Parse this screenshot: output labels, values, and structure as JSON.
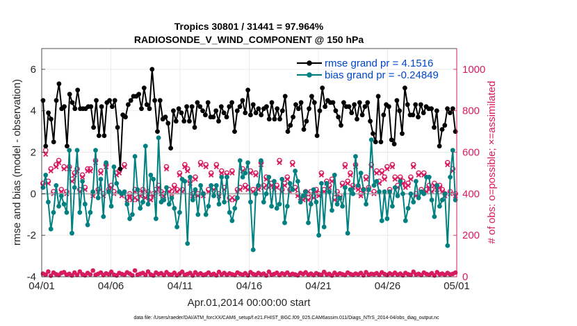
{
  "chart_data": {
    "type": "line",
    "title_line1": "Tropics 30801 / 31441 = 97.964%",
    "title_line2": "RADIOSONDE_V_WIND_COMPONENT @ 150 hPa",
    "xlabel": "Apr.01,2014 00:00:00 start",
    "ylabel_left": "rmse and bias (model - observation)",
    "ylabel_right": "# of obs: o=possible; ×=assimilated",
    "footer": "data file: /Users/raeder/DAI/ATM_forcXX/CAM6_setup/f.e21.FHIST_BGC.f09_025.CAM6assim.011/Diags_NTrS_2014-04/obs_diag_output.nc",
    "x_range": [
      0,
      30
    ],
    "x_ticks": [
      0,
      5,
      10,
      15,
      20,
      25,
      30
    ],
    "x_tick_labels": [
      "04/01",
      "04/06",
      "04/11",
      "04/16",
      "04/21",
      "04/26",
      "05/01"
    ],
    "y_left_range": [
      -4,
      7
    ],
    "y_left_ticks": [
      -4,
      -2,
      0,
      2,
      4,
      6
    ],
    "y_left_tick_labels": [
      "-4",
      "-2",
      "0",
      "2",
      "4",
      "6"
    ],
    "y_right_range": [
      0,
      1100
    ],
    "y_right_ticks": [
      0,
      200,
      400,
      600,
      800,
      1000
    ],
    "y_right_tick_labels": [
      "0",
      "200",
      "400",
      "600",
      "800",
      "1000"
    ],
    "legend": [
      {
        "label": "rmse grand pr = 4.1516",
        "color": "#000000"
      },
      {
        "label": "bias grand pr = -0.24849",
        "color": "#008080"
      }
    ],
    "colors": {
      "rmse": "#000000",
      "bias": "#008080",
      "obs": "#d81b60",
      "zero_line": "#b0b0b0",
      "legend_text": "#0046c8"
    },
    "series": [
      {
        "name": "rmse",
        "axis": "left",
        "values": [
          4.5,
          2.3,
          3.9,
          3.6,
          2.5,
          4.5,
          5.3,
          4.1,
          4.2,
          2.3,
          4.8,
          4.4,
          4.1,
          5.0,
          4.1,
          4.1,
          4.1,
          4.2,
          4.2,
          3.2,
          4.5,
          2.8,
          4.2,
          2.8,
          4.4,
          4.5,
          4.2,
          4.5,
          3.2,
          1.2,
          3.8,
          3.7,
          4.3,
          4.5,
          4.7,
          4.7,
          4.8,
          4.1,
          5.1,
          4.3,
          4.1,
          6.0,
          4.5,
          3.0,
          4.5,
          3.6,
          3.7,
          3.4,
          2.2,
          4.0,
          3.5,
          4.1,
          3.9,
          3.5,
          4.2,
          3.5,
          4.2,
          3.2,
          4.4,
          4.2,
          4.0,
          3.8,
          4.4,
          3.7,
          3.7,
          4.0,
          3.5,
          4.2,
          3.9,
          3.7,
          4.2,
          4.4,
          3.0,
          4.0,
          4.2,
          4.5,
          3.9,
          5.0,
          3.8,
          4.3,
          3.9,
          4.1,
          3.8,
          4.1,
          4.2,
          3.6,
          4.4,
          3.6,
          4.1,
          3.6,
          4.0,
          4.7,
          3.0,
          3.3,
          3.7,
          4.3,
          4.1,
          4.4,
          3.1,
          3.5,
          4.1,
          4.7,
          4.4,
          2.8,
          4.0,
          5.1,
          4.2,
          4.5,
          4.4,
          4.4,
          4.0,
          3.7,
          3.3,
          4.4,
          4.2,
          4.2,
          3.9,
          4.3,
          3.6,
          4.4,
          3.8,
          4.2,
          4.4,
          3.5,
          2.9,
          2.5,
          4.7,
          2.5,
          3.8,
          4.3,
          4.2,
          2.6,
          2.4,
          4.5,
          4.0,
          2.9,
          5.1,
          4.3,
          3.8,
          3.8,
          4.3,
          3.7,
          4.3,
          3.9,
          4.2,
          4.1,
          4.1,
          3.2,
          4.0,
          2.3,
          3.1,
          3.3,
          4.1,
          3.9,
          4.1,
          3.0
        ]
      },
      {
        "name": "bias",
        "axis": "left",
        "values": [
          0.3,
          0.9,
          -0.4,
          -1.7,
          -0.9,
          0.4,
          -0.6,
          -0.1,
          -0.5,
          -0.9,
          2.1,
          -1.9,
          0.3,
          2.1,
          -0.9,
          0.6,
          -0.5,
          -1.5,
          -0.9,
          0.1,
          2.1,
          -0.2,
          0.7,
          -1.1,
          1.5,
          0.1,
          -0.6,
          1.3,
          0.5,
          0.1,
          0.0,
          0.1,
          -0.5,
          -1.2,
          -1.0,
          1.8,
          0.2,
          -0.7,
          -0.4,
          2.3,
          -0.5,
          0.9,
          0.7,
          -1.2,
          2.7,
          -0.4,
          -0.3,
          0.3,
          -0.5,
          -0.2,
          -0.7,
          -1.6,
          -0.9,
          0.7,
          0.6,
          -2.4,
          0.8,
          -0.3,
          0.2,
          -1.0,
          0.4,
          0.0,
          -1.0,
          -0.6,
          0.4,
          -0.1,
          0.4,
          -0.5,
          0.8,
          -0.4,
          0.8,
          -0.9,
          -1.3,
          -0.7,
          -0.2,
          1.6,
          0.8,
          1.0,
          1.5,
          -0.4,
          -2.7,
          0.0,
          0.4,
          1.6,
          -0.4,
          0.0,
          0.8,
          -0.6,
          0.6,
          -0.7,
          -0.5,
          0.7,
          -1.4,
          -0.6,
          0.5,
          0.2,
          1.1,
          0.6,
          -0.4,
          -0.1,
          0.1,
          -1.4,
          -0.5,
          0.2,
          -0.4,
          -2.0,
          0.5,
          -1.6,
          0.5,
          0.1,
          -0.8,
          0.9,
          -0.5,
          -0.2,
          -0.6,
          0.3,
          -1.9,
          0.2,
          0.0,
          1.8,
          0.4,
          1.0,
          0.2,
          -0.5,
          0.2,
          2.6,
          0.4,
          0.6,
          0.1,
          -1.3,
          0.1,
          -1.2,
          0.1,
          -0.6,
          0.3,
          -0.1,
          0.6,
          0.0,
          -1.3,
          -0.7,
          0.0,
          -0.4,
          0.6,
          -0.2,
          0.1,
          0.0,
          0.8,
          0.8,
          -0.3,
          -1.1,
          0.4,
          -0.6,
          -0.3,
          0.0,
          -2.5,
          0.8,
          2.1,
          -0.3
        ]
      },
      {
        "name": "obs possible",
        "axis": "right",
        "marker": "o",
        "values": [
          450,
          610,
          460,
          520,
          410,
          540,
          560,
          420,
          530,
          410,
          530,
          470,
          500,
          520,
          420,
          490,
          430,
          520,
          520,
          400,
          560,
          420,
          510,
          400,
          540,
          420,
          440,
          410,
          500,
          510,
          400,
          540,
          380,
          400,
          380,
          420,
          380,
          400,
          420,
          390,
          410,
          380,
          400,
          420,
          440,
          410,
          400,
          530,
          420,
          410,
          440,
          420,
          500,
          420,
          540,
          520,
          460,
          400,
          480,
          400,
          550,
          400,
          540,
          420,
          500,
          430,
          540,
          400,
          510,
          430,
          500,
          380,
          510,
          380,
          420,
          430,
          520,
          440,
          430,
          510,
          420,
          500,
          430,
          550,
          440,
          480,
          440,
          450,
          430,
          440,
          560,
          420,
          450,
          480,
          420,
          550,
          430,
          400,
          390,
          380,
          410,
          380,
          410,
          390,
          420,
          400,
          500,
          420,
          460,
          440,
          470,
          380,
          410,
          390,
          450,
          540,
          460,
          500,
          440,
          540,
          430,
          400,
          420,
          480,
          430,
          540,
          410,
          510,
          460,
          510,
          480,
          530,
          420,
          540,
          480,
          440,
          480,
          460,
          440,
          450,
          480,
          540,
          400,
          500,
          420,
          500,
          420,
          440,
          420,
          450,
          430,
          440,
          420,
          400,
          550,
          410,
          520,
          400
        ]
      },
      {
        "name": "obs assimilated",
        "axis": "right",
        "marker": "x",
        "values": [
          440,
          590,
          450,
          510,
          400,
          530,
          550,
          410,
          520,
          400,
          520,
          460,
          490,
          510,
          410,
          480,
          420,
          510,
          510,
          390,
          550,
          410,
          500,
          390,
          530,
          410,
          430,
          400,
          490,
          500,
          390,
          530,
          370,
          390,
          370,
          410,
          370,
          390,
          410,
          380,
          400,
          370,
          390,
          410,
          430,
          400,
          390,
          520,
          410,
          400,
          430,
          410,
          490,
          410,
          530,
          510,
          450,
          390,
          470,
          390,
          540,
          390,
          530,
          410,
          490,
          420,
          530,
          390,
          500,
          420,
          490,
          370,
          500,
          370,
          410,
          420,
          510,
          430,
          420,
          500,
          410,
          490,
          420,
          540,
          430,
          470,
          430,
          440,
          420,
          430,
          550,
          410,
          440,
          470,
          410,
          540,
          420,
          390,
          380,
          370,
          400,
          370,
          400,
          380,
          410,
          390,
          490,
          410,
          450,
          430,
          460,
          370,
          400,
          380,
          440,
          530,
          450,
          490,
          430,
          530,
          420,
          390,
          410,
          470,
          420,
          530,
          400,
          500,
          450,
          500,
          470,
          520,
          410,
          530,
          470,
          430,
          470,
          450,
          430,
          440,
          470,
          530,
          390,
          490,
          410,
          490,
          410,
          430,
          410,
          440,
          420,
          430,
          410,
          390,
          540,
          400,
          510,
          390
        ]
      },
      {
        "name": "obs rejected",
        "axis": "right",
        "marker": "*",
        "values": [
          15,
          10,
          25,
          5,
          20,
          12,
          8,
          18,
          22,
          10,
          14,
          6,
          20,
          9,
          25,
          12,
          7,
          18,
          11,
          30,
          9,
          14,
          20,
          8,
          16,
          12,
          24,
          10,
          6,
          18,
          13,
          9,
          21,
          15,
          7,
          30,
          10,
          14,
          18,
          9,
          25,
          11,
          6,
          20,
          13,
          17,
          8,
          22,
          12,
          10,
          19,
          7,
          15,
          24,
          9,
          13,
          18,
          6,
          21,
          11,
          16,
          8,
          12,
          20,
          10,
          14,
          7,
          23,
          11,
          18,
          9,
          16,
          12,
          8,
          20,
          14,
          10,
          17,
          7,
          22,
          13,
          9,
          18,
          11,
          15,
          6,
          24,
          10,
          13,
          19,
          8,
          16,
          12,
          20,
          9,
          14,
          11,
          7,
          18,
          13,
          21,
          10,
          15,
          8,
          17,
          12,
          9,
          23,
          11,
          14,
          6,
          19,
          10,
          16,
          12,
          8,
          20,
          13,
          9,
          15,
          11,
          18,
          7,
          22,
          10,
          14,
          12,
          17,
          9,
          21,
          13,
          8,
          16,
          11,
          19,
          10,
          15,
          7,
          18,
          12,
          9,
          24,
          11,
          14,
          8,
          20,
          13,
          10,
          17,
          6,
          22,
          12,
          15,
          9,
          18,
          11,
          14,
          20
        ]
      }
    ]
  }
}
